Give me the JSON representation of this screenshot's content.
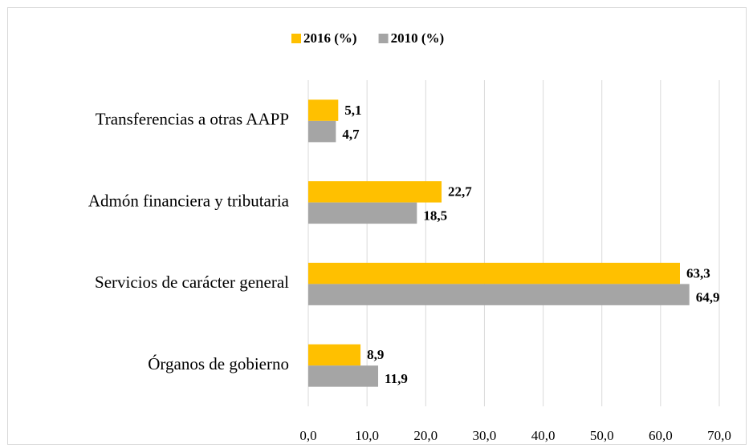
{
  "chart_data": {
    "type": "barh",
    "categories": [
      "Transferencias a otras AAPP",
      "Admón financiera y tributaria",
      "Servicios de carácter general",
      "Órganos de gobierno"
    ],
    "series": [
      {
        "name": "2016 (%)",
        "color": "#FFC000",
        "values": [
          5.1,
          22.7,
          63.3,
          8.9
        ],
        "value_labels": [
          "5,1",
          "22,7",
          "63,3",
          "8,9"
        ]
      },
      {
        "name": "2010 (%)",
        "color": "#A5A5A5",
        "values": [
          4.7,
          18.5,
          64.9,
          11.9
        ],
        "value_labels": [
          "4,7",
          "18,5",
          "64,9",
          "11,9"
        ]
      }
    ],
    "xlim": [
      0,
      70
    ],
    "xticks": [
      {
        "value": 0,
        "label": "0,0"
      },
      {
        "value": 10,
        "label": "10,0"
      },
      {
        "value": 20,
        "label": "20,0"
      },
      {
        "value": 30,
        "label": "30,0"
      },
      {
        "value": 40,
        "label": "40,0"
      },
      {
        "value": 50,
        "label": "50,0"
      },
      {
        "value": 60,
        "label": "60,0"
      },
      {
        "value": 70,
        "label": "70,0"
      }
    ],
    "grid": true,
    "legend": "top"
  }
}
